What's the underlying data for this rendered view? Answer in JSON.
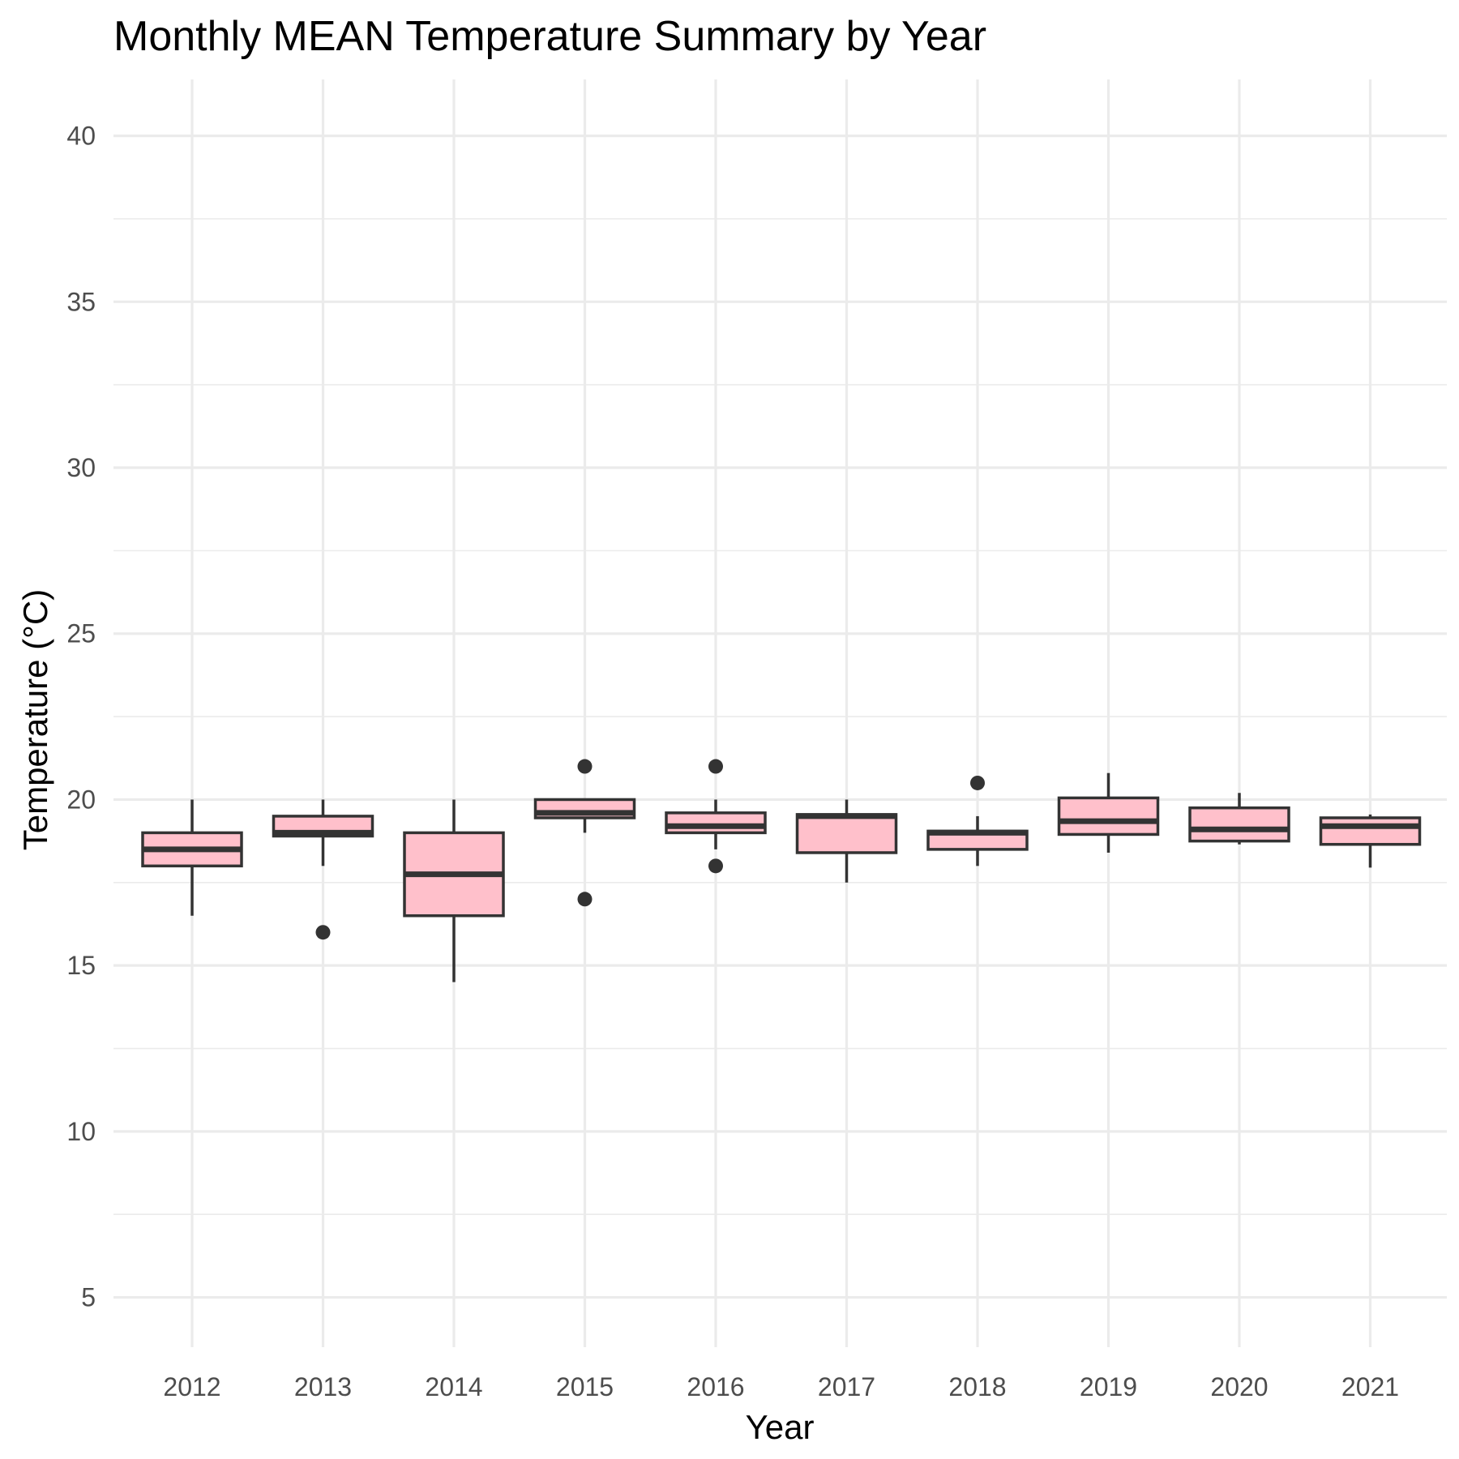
{
  "chart_data": {
    "type": "boxplot",
    "title": "Monthly MEAN Temperature Summary by Year",
    "xlabel": "Year",
    "ylabel": "Temperature (°C)",
    "ylim": [
      3.5,
      41.7
    ],
    "yticks": [
      5,
      10,
      15,
      20,
      25,
      30,
      35,
      40
    ],
    "ytick_labels": [
      "5",
      "10",
      "15",
      "20",
      "25",
      "30",
      "35",
      "40"
    ],
    "grid": true,
    "fill_color": "#ffc0cb",
    "outline_color": "#333333",
    "categories": [
      "2012",
      "2013",
      "2014",
      "2015",
      "2016",
      "2017",
      "2018",
      "2019",
      "2020",
      "2021"
    ],
    "boxes": [
      {
        "year": "2012",
        "whisker_low": 16.5,
        "q1": 18.0,
        "median": 18.5,
        "q3": 19.0,
        "whisker_high": 20.0,
        "outliers": []
      },
      {
        "year": "2013",
        "whisker_low": 18.0,
        "q1": 18.9,
        "median": 19.0,
        "q3": 19.5,
        "whisker_high": 20.0,
        "outliers": [
          16.0
        ]
      },
      {
        "year": "2014",
        "whisker_low": 14.5,
        "q1": 16.5,
        "median": 17.75,
        "q3": 19.0,
        "whisker_high": 20.0,
        "outliers": []
      },
      {
        "year": "2015",
        "whisker_low": 19.0,
        "q1": 19.45,
        "median": 19.6,
        "q3": 20.0,
        "whisker_high": 20.0,
        "outliers": [
          21.0,
          17.0
        ]
      },
      {
        "year": "2016",
        "whisker_low": 18.5,
        "q1": 19.0,
        "median": 19.2,
        "q3": 19.6,
        "whisker_high": 20.0,
        "outliers": [
          21.0,
          18.0
        ]
      },
      {
        "year": "2017",
        "whisker_low": 17.5,
        "q1": 18.4,
        "median": 19.5,
        "q3": 19.55,
        "whisker_high": 20.0,
        "outliers": []
      },
      {
        "year": "2018",
        "whisker_low": 18.0,
        "q1": 18.5,
        "median": 19.0,
        "q3": 19.05,
        "whisker_high": 19.5,
        "outliers": [
          20.5
        ]
      },
      {
        "year": "2019",
        "whisker_low": 18.4,
        "q1": 18.95,
        "median": 19.35,
        "q3": 20.05,
        "whisker_high": 20.8,
        "outliers": []
      },
      {
        "year": "2020",
        "whisker_low": 18.65,
        "q1": 18.75,
        "median": 19.1,
        "q3": 19.75,
        "whisker_high": 20.2,
        "outliers": []
      },
      {
        "year": "2021",
        "whisker_low": 17.95,
        "q1": 18.65,
        "median": 19.2,
        "q3": 19.45,
        "whisker_high": 19.55,
        "outliers": []
      }
    ]
  }
}
